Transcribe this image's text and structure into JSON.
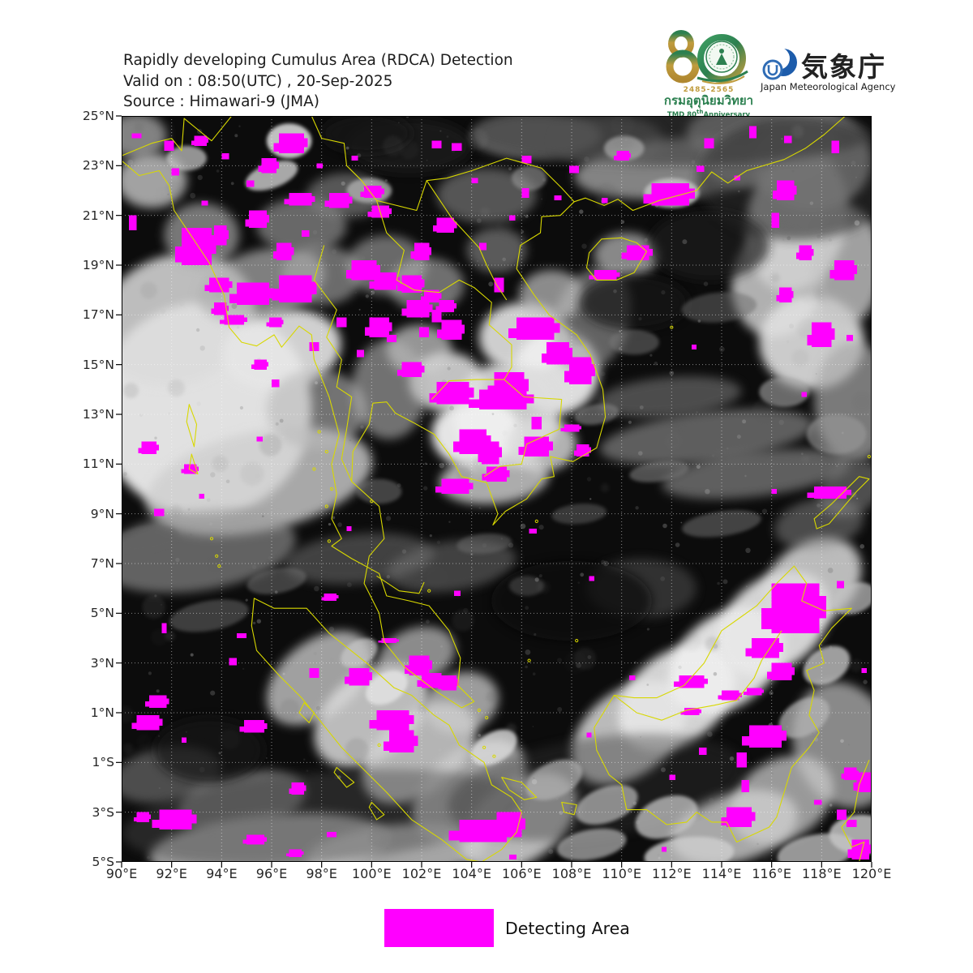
{
  "header": {
    "title_line1": "Rapidly developing Cumulus Area (RDCA) Detection",
    "title_line2": "Valid on : 08:50(UTC) , 20-Sep-2025",
    "title_line3": "Source : Himawari-9 (JMA)"
  },
  "logos": {
    "tmd": {
      "number": "80",
      "years": "2485-2565",
      "thai_name": "กรมอุตุนิยมวิทยา",
      "anniv_prefix": "TMD 80",
      "anniv_sup": "th",
      "anniv_suffix": "Anniversary"
    },
    "jma": {
      "name_jp": "気象庁",
      "name_en": "Japan Meteorological Agency"
    }
  },
  "map": {
    "lon_min": 90,
    "lon_max": 120,
    "lat_min": -5,
    "lat_max": 25,
    "grid_step_deg": 2,
    "x_tick_labels": [
      "90°E",
      "92°E",
      "94°E",
      "96°E",
      "98°E",
      "100°E",
      "102°E",
      "104°E",
      "106°E",
      "108°E",
      "110°E",
      "112°E",
      "114°E",
      "116°E",
      "118°E",
      "120°E"
    ],
    "y_tick_labels": [
      "25°N",
      "23°N",
      "21°N",
      "19°N",
      "17°N",
      "15°N",
      "13°N",
      "11°N",
      "9°N",
      "7°N",
      "5°N",
      "3°N",
      "1°N",
      "1°S",
      "3°S",
      "5°S"
    ],
    "detections_format": "[lon_west_deg, lat_north_deg, width_deg, height_deg]",
    "detections": [
      [
        96.3,
        24.3,
        1.0,
        0.8
      ],
      [
        95.6,
        23.3,
        0.6,
        0.6
      ],
      [
        92.9,
        24.2,
        0.5,
        0.4
      ],
      [
        91.7,
        24.0,
        0.4,
        0.4
      ],
      [
        90.4,
        24.3,
        0.4,
        0.2
      ],
      [
        92.4,
        20.5,
        1.2,
        1.5
      ],
      [
        93.7,
        20.6,
        0.5,
        0.8
      ],
      [
        95.1,
        21.2,
        0.7,
        0.7
      ],
      [
        96.7,
        21.9,
        0.9,
        0.5
      ],
      [
        98.3,
        21.9,
        0.8,
        0.6
      ],
      [
        99.7,
        22.2,
        0.7,
        0.5
      ],
      [
        100.0,
        21.4,
        0.7,
        0.5
      ],
      [
        102.4,
        24.0,
        0.4,
        0.3
      ],
      [
        103.2,
        23.9,
        0.4,
        0.3
      ],
      [
        93.5,
        18.5,
        0.8,
        0.6
      ],
      [
        94.6,
        18.3,
        1.3,
        0.9
      ],
      [
        96.3,
        18.6,
        1.3,
        1.1
      ],
      [
        93.7,
        17.5,
        0.5,
        0.5
      ],
      [
        94.1,
        17.0,
        0.8,
        0.4
      ],
      [
        96.2,
        19.9,
        0.6,
        0.7
      ],
      [
        95.3,
        15.2,
        0.5,
        0.4
      ],
      [
        92.5,
        11.0,
        0.5,
        0.4
      ],
      [
        90.8,
        11.9,
        0.6,
        0.5
      ],
      [
        91.3,
        9.2,
        0.4,
        0.3
      ],
      [
        100.1,
        18.7,
        0.9,
        0.7
      ],
      [
        101.2,
        18.6,
        0.8,
        0.7
      ],
      [
        102.1,
        18.0,
        0.6,
        0.5
      ],
      [
        102.7,
        17.6,
        0.6,
        0.5
      ],
      [
        101.7,
        19.9,
        0.6,
        0.7
      ],
      [
        102.6,
        20.9,
        0.7,
        0.6
      ],
      [
        104.3,
        19.9,
        0.3,
        0.3
      ],
      [
        104.9,
        18.5,
        0.4,
        0.6
      ],
      [
        102.4,
        17.2,
        0.4,
        0.5
      ],
      [
        106.0,
        23.4,
        0.4,
        0.3
      ],
      [
        106.0,
        22.1,
        0.3,
        0.4
      ],
      [
        107.9,
        23.0,
        0.4,
        0.3
      ],
      [
        109.8,
        23.6,
        0.5,
        0.4
      ],
      [
        111.2,
        22.3,
        1.5,
        0.9
      ],
      [
        113.3,
        24.1,
        0.4,
        0.4
      ],
      [
        115.1,
        24.6,
        0.3,
        0.5
      ],
      [
        116.2,
        22.4,
        0.7,
        0.8
      ],
      [
        118.4,
        24.0,
        0.3,
        0.5
      ],
      [
        116.0,
        21.1,
        0.3,
        0.6
      ],
      [
        117.1,
        19.8,
        0.5,
        0.6
      ],
      [
        118.5,
        19.2,
        0.8,
        0.8
      ],
      [
        116.3,
        18.1,
        0.5,
        0.6
      ],
      [
        117.6,
        16.7,
        0.8,
        1.0
      ],
      [
        110.2,
        19.8,
        0.9,
        0.6
      ],
      [
        108.9,
        18.8,
        0.9,
        0.4
      ],
      [
        112.8,
        15.8,
        0.2,
        0.2
      ],
      [
        105.8,
        16.9,
        1.5,
        0.9
      ],
      [
        107.0,
        15.9,
        0.9,
        0.9
      ],
      [
        107.9,
        15.3,
        0.9,
        1.1
      ],
      [
        104.9,
        14.7,
        1.2,
        1.1
      ],
      [
        106.4,
        12.9,
        0.4,
        0.5
      ],
      [
        107.7,
        12.6,
        0.6,
        0.3
      ],
      [
        106.1,
        12.1,
        1.0,
        0.8
      ],
      [
        108.2,
        11.8,
        0.5,
        0.5
      ],
      [
        103.5,
        12.4,
        1.1,
        1.0
      ],
      [
        104.4,
        11.9,
        0.7,
        0.9
      ],
      [
        102.8,
        10.4,
        1.1,
        0.6
      ],
      [
        104.6,
        10.9,
        0.8,
        0.6
      ],
      [
        101.2,
        15.1,
        0.8,
        0.6
      ],
      [
        102.6,
        14.3,
        1.3,
        0.9
      ],
      [
        104.3,
        14.0,
        1.9,
        0.8
      ],
      [
        102.8,
        16.8,
        0.8,
        0.8
      ],
      [
        101.4,
        17.6,
        0.9,
        0.7
      ],
      [
        99.9,
        16.9,
        0.8,
        0.8
      ],
      [
        99.2,
        19.2,
        1.0,
        0.8
      ],
      [
        98.1,
        5.8,
        0.5,
        0.3
      ],
      [
        99.1,
        2.8,
        0.8,
        0.7
      ],
      [
        102.0,
        2.6,
        0.8,
        0.6
      ],
      [
        100.2,
        1.1,
        1.3,
        0.8
      ],
      [
        100.7,
        0.3,
        1.0,
        0.9
      ],
      [
        102.8,
        2.5,
        0.6,
        0.6
      ],
      [
        97.5,
        2.8,
        0.4,
        0.4
      ],
      [
        94.6,
        4.2,
        0.4,
        0.2
      ],
      [
        94.3,
        3.2,
        0.3,
        0.3
      ],
      [
        100.4,
        4.0,
        0.6,
        0.2
      ],
      [
        101.5,
        3.3,
        0.8,
        0.8
      ],
      [
        91.1,
        1.7,
        0.7,
        0.5
      ],
      [
        90.6,
        0.9,
        0.9,
        0.6
      ],
      [
        94.9,
        0.7,
        0.8,
        0.5
      ],
      [
        92.4,
        0.0,
        0.2,
        0.2
      ],
      [
        101.1,
        -0.2,
        0.5,
        0.4
      ],
      [
        96.8,
        -1.8,
        0.5,
        0.5
      ],
      [
        91.5,
        -2.9,
        1.3,
        0.8
      ],
      [
        90.6,
        -3.0,
        0.5,
        0.4
      ],
      [
        103.5,
        -3.3,
        1.9,
        0.9
      ],
      [
        105.0,
        -3.0,
        1.0,
        1.0
      ],
      [
        95.0,
        -3.9,
        0.7,
        0.4
      ],
      [
        98.2,
        -3.8,
        0.4,
        0.2
      ],
      [
        96.7,
        -4.5,
        0.5,
        0.3
      ],
      [
        116.0,
        6.2,
        1.9,
        2.0
      ],
      [
        115.2,
        4.0,
        1.1,
        0.8
      ],
      [
        116.0,
        3.0,
        0.8,
        0.7
      ],
      [
        112.3,
        2.5,
        1.0,
        0.5
      ],
      [
        114.0,
        1.9,
        0.7,
        0.4
      ],
      [
        115.0,
        2.0,
        0.6,
        0.3
      ],
      [
        112.5,
        1.2,
        0.6,
        0.3
      ],
      [
        115.1,
        0.5,
        1.3,
        0.9
      ],
      [
        114.6,
        -0.6,
        0.4,
        0.6
      ],
      [
        114.8,
        -1.7,
        0.3,
        0.5
      ],
      [
        114.2,
        -2.8,
        1.0,
        0.8
      ],
      [
        118.9,
        -1.2,
        0.5,
        0.5
      ],
      [
        118.6,
        -2.9,
        0.4,
        0.4
      ],
      [
        119.0,
        -3.3,
        0.4,
        0.3
      ],
      [
        117.7,
        -2.5,
        0.3,
        0.2
      ],
      [
        119.4,
        -1.4,
        0.6,
        0.8
      ],
      [
        111.6,
        -4.4,
        0.2,
        0.2
      ],
      [
        113.1,
        -0.4,
        0.3,
        0.3
      ],
      [
        117.7,
        10.1,
        1.3,
        0.5
      ],
      [
        119.2,
        -4.1,
        0.7,
        0.8
      ],
      [
        105.5,
        -4.7,
        0.3,
        0.2
      ],
      [
        106.3,
        8.4,
        0.3,
        0.2
      ],
      [
        108.7,
        6.5,
        0.2,
        0.2
      ],
      [
        97.8,
        23.1,
        0.25,
        0.2
      ],
      [
        99.2,
        23.4,
        0.25,
        0.2
      ],
      [
        104.0,
        22.5,
        0.25,
        0.2
      ],
      [
        95.0,
        22.4,
        0.3,
        0.25
      ],
      [
        93.2,
        21.6,
        0.25,
        0.2
      ],
      [
        97.2,
        20.4,
        0.3,
        0.25
      ],
      [
        105.5,
        21.0,
        0.25,
        0.2
      ],
      [
        107.3,
        21.8,
        0.3,
        0.2
      ],
      [
        109.2,
        21.7,
        0.25,
        0.2
      ],
      [
        113.0,
        23.0,
        0.3,
        0.25
      ],
      [
        96.0,
        14.4,
        0.3,
        0.3
      ],
      [
        95.4,
        12.1,
        0.25,
        0.2
      ],
      [
        91.6,
        4.6,
        0.2,
        0.4
      ],
      [
        93.1,
        9.8,
        0.2,
        0.2
      ],
      [
        99.0,
        8.5,
        0.2,
        0.2
      ],
      [
        110.3,
        2.5,
        0.25,
        0.2
      ],
      [
        108.6,
        0.2,
        0.2,
        0.2
      ],
      [
        111.9,
        -1.5,
        0.25,
        0.2
      ],
      [
        117.2,
        13.9,
        0.2,
        0.2
      ],
      [
        119.0,
        16.2,
        0.25,
        0.25
      ],
      [
        116.5,
        24.2,
        0.3,
        0.3
      ],
      [
        114.5,
        22.6,
        0.25,
        0.2
      ],
      [
        103.3,
        5.9,
        0.25,
        0.2
      ],
      [
        118.6,
        6.3,
        0.3,
        0.3
      ],
      [
        119.6,
        2.8,
        0.2,
        0.2
      ],
      [
        116.0,
        10.0,
        0.2,
        0.2
      ],
      [
        94.0,
        23.5,
        0.3,
        0.25
      ],
      [
        92.0,
        22.9,
        0.3,
        0.3
      ],
      [
        90.3,
        21.0,
        0.3,
        0.6
      ],
      [
        101.9,
        16.5,
        0.4,
        0.4
      ],
      [
        100.6,
        16.2,
        0.4,
        0.3
      ],
      [
        99.4,
        15.6,
        0.3,
        0.3
      ],
      [
        98.6,
        16.9,
        0.4,
        0.4
      ],
      [
        97.5,
        15.9,
        0.4,
        0.35
      ],
      [
        95.9,
        16.9,
        0.5,
        0.4
      ]
    ]
  },
  "legend": {
    "label": "Detecting Area",
    "color": "#ff00ff"
  },
  "colors": {
    "detection": "#ff00ff",
    "coastline": "#d8d800",
    "grid": "rgba(255,255,255,0.5)",
    "map_background": "#0c0c0c",
    "frame": "#000000",
    "title_text": "#1c1c1c",
    "tick_text": "#262626",
    "tmd_green": "#2c8050",
    "tmd_gold": "#c09c3e",
    "jma_blue": "#1d5cab"
  }
}
